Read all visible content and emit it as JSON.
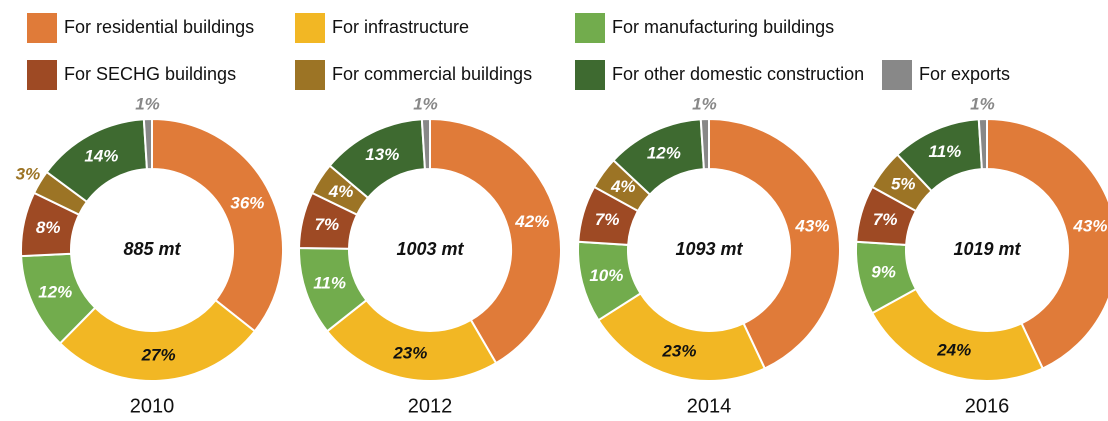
{
  "chart_data": {
    "type": "donut",
    "categories": [
      "For residential buildings",
      "For infrastructure",
      "For manufacturing buildings",
      "For SECHG buildings",
      "For commercial buildings",
      "For other domestic construction",
      "For exports"
    ],
    "colors": [
      "#e07b39",
      "#f2b724",
      "#72ac4d",
      "#9e4a24",
      "#9c7425",
      "#3e6a30",
      "#888888"
    ],
    "series": [
      {
        "name": "2010",
        "center_label": "885 mt",
        "values": [
          36,
          27,
          12,
          8,
          3,
          14,
          1
        ],
        "value_labels": [
          "36%",
          "27%",
          "12%",
          "8%",
          "3%",
          "14%",
          "1%"
        ]
      },
      {
        "name": "2012",
        "center_label": "1003 mt",
        "values": [
          42,
          23,
          11,
          7,
          4,
          13,
          1
        ],
        "value_labels": [
          "42%",
          "23%",
          "11%",
          "7%",
          "4%",
          "13%",
          "1%"
        ]
      },
      {
        "name": "2014",
        "center_label": "1093 mt",
        "values": [
          43,
          23,
          10,
          7,
          4,
          12,
          1
        ],
        "value_labels": [
          "43%",
          "23%",
          "10%",
          "7%",
          "4%",
          "12%",
          "1%"
        ]
      },
      {
        "name": "2016",
        "center_label": "1019 mt",
        "values": [
          43,
          24,
          9,
          7,
          5,
          11,
          1
        ],
        "value_labels": [
          "43%",
          "24%",
          "9%",
          "7%",
          "5%",
          "11%",
          "1%"
        ]
      }
    ]
  }
}
